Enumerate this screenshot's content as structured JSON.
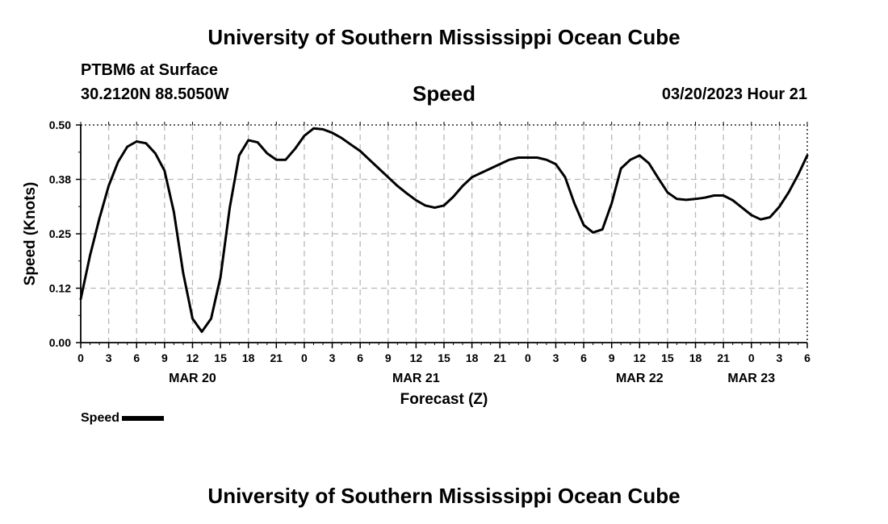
{
  "header": {
    "title": "University of Southern Mississippi Ocean Cube",
    "station": "PTBM6 at Surface",
    "coordinates": "30.2120N  88.5050W",
    "panel_title": "Speed",
    "timestamp": "03/20/2023 Hour 21"
  },
  "footer": {
    "title": "University of Southern Mississippi Ocean Cube"
  },
  "chart_data": {
    "type": "line",
    "title": "Speed",
    "xlabel": "Forecast (Z)",
    "ylabel": "Speed (Knots)",
    "ylim": [
      0,
      0.5
    ],
    "yticks": [
      "0.00",
      "0.12",
      "0.25",
      "0.38",
      "0.50"
    ],
    "xlim_hours": [
      0,
      78
    ],
    "xtick_labels": [
      "0",
      "3",
      "6",
      "9",
      "12",
      "15",
      "18",
      "21",
      "0",
      "3",
      "6",
      "9",
      "12",
      "15",
      "18",
      "21",
      "0",
      "3",
      "6",
      "9",
      "12",
      "15",
      "18",
      "21",
      "0",
      "3",
      "6"
    ],
    "date_labels": [
      {
        "label": "MAR 20",
        "hour": 12
      },
      {
        "label": "MAR 21",
        "hour": 36
      },
      {
        "label": "MAR 22",
        "hour": 60
      },
      {
        "label": "MAR 23",
        "hour": 72
      }
    ],
    "grid": true,
    "legend": "bottom-left",
    "series": [
      {
        "name": "Speed",
        "color": "#000000",
        "x_hours": [
          0,
          1,
          2,
          3,
          4,
          5,
          6,
          7,
          8,
          9,
          10,
          11,
          12,
          13,
          14,
          15,
          16,
          17,
          18,
          19,
          20,
          21,
          22,
          23,
          24,
          25,
          26,
          27,
          28,
          29,
          30,
          31,
          32,
          33,
          34,
          35,
          36,
          37,
          38,
          39,
          40,
          41,
          42,
          43,
          44,
          45,
          46,
          47,
          48,
          49,
          50,
          51,
          52,
          53,
          54,
          55,
          56,
          57,
          58,
          59,
          60,
          61,
          62,
          63,
          64,
          65,
          66,
          67,
          68,
          69,
          70,
          71,
          72,
          73,
          74,
          75,
          76,
          77,
          78
        ],
        "values": [
          0.1,
          0.2,
          0.285,
          0.36,
          0.415,
          0.45,
          0.462,
          0.458,
          0.435,
          0.395,
          0.3,
          0.16,
          0.055,
          0.025,
          0.055,
          0.15,
          0.31,
          0.43,
          0.465,
          0.46,
          0.435,
          0.42,
          0.42,
          0.445,
          0.475,
          0.492,
          0.49,
          0.482,
          0.47,
          0.455,
          0.44,
          0.42,
          0.4,
          0.38,
          0.36,
          0.343,
          0.327,
          0.315,
          0.31,
          0.315,
          0.335,
          0.36,
          0.38,
          0.39,
          0.4,
          0.41,
          0.42,
          0.425,
          0.425,
          0.425,
          0.42,
          0.41,
          0.38,
          0.32,
          0.27,
          0.253,
          0.26,
          0.32,
          0.4,
          0.42,
          0.43,
          0.412,
          0.378,
          0.345,
          0.33,
          0.328,
          0.33,
          0.333,
          0.338,
          0.338,
          0.327,
          0.31,
          0.293,
          0.283,
          0.288,
          0.312,
          0.345,
          0.385,
          0.43
        ]
      }
    ]
  }
}
